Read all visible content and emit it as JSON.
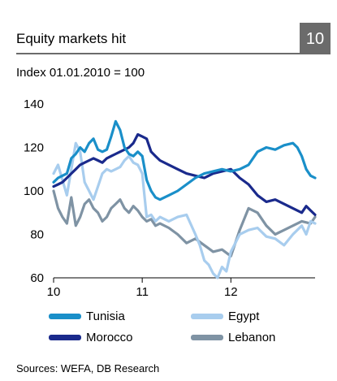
{
  "header": {
    "title": "Equity markets hit",
    "figure_number": "10"
  },
  "subtitle": "Index 01.01.2010 = 100",
  "source": "Sources: WEFA, DB Research",
  "colors": {
    "Tunisia": "#1a8fc9",
    "Egypt": "#a8cdee",
    "Morocco": "#1a2a8c",
    "Lebanon": "#7f93a4",
    "accent_box": "#6b6b6b"
  },
  "chart_data": {
    "type": "line",
    "ylim": [
      60,
      140
    ],
    "yticks": [
      60,
      80,
      100,
      120,
      140
    ],
    "xlim": [
      2010.0,
      2012.95
    ],
    "xticks": [
      {
        "value": 2010,
        "label": "10"
      },
      {
        "value": 2011,
        "label": "11"
      },
      {
        "value": 2012,
        "label": "12"
      }
    ],
    "grid": false,
    "legend_position": "bottom",
    "series": [
      {
        "name": "Tunisia",
        "x": [
          2010.0,
          2010.05,
          2010.1,
          2010.15,
          2010.2,
          2010.25,
          2010.3,
          2010.35,
          2010.4,
          2010.45,
          2010.5,
          2010.55,
          2010.6,
          2010.65,
          2010.7,
          2010.75,
          2010.8,
          2010.85,
          2010.9,
          2010.95,
          2011.0,
          2011.05,
          2011.1,
          2011.15,
          2011.2,
          2011.3,
          2011.4,
          2011.5,
          2011.6,
          2011.7,
          2011.8,
          2011.9,
          2012.0,
          2012.1,
          2012.2,
          2012.3,
          2012.4,
          2012.5,
          2012.6,
          2012.7,
          2012.75,
          2012.8,
          2012.85,
          2012.9,
          2012.95
        ],
        "y": [
          104,
          106,
          107,
          108,
          115,
          117,
          120,
          118,
          122,
          124,
          119,
          118,
          119,
          125,
          132,
          128,
          120,
          117,
          116,
          118,
          116,
          105,
          100,
          97,
          96,
          98,
          100,
          103,
          106,
          108,
          109,
          110,
          109,
          110,
          112,
          118,
          120,
          119,
          121,
          122,
          120,
          116,
          110,
          107,
          106
        ]
      },
      {
        "name": "Egypt",
        "x": [
          2010.0,
          2010.05,
          2010.1,
          2010.15,
          2010.2,
          2010.25,
          2010.3,
          2010.35,
          2010.4,
          2010.45,
          2010.5,
          2010.55,
          2010.6,
          2010.65,
          2010.7,
          2010.75,
          2010.8,
          2010.85,
          2010.9,
          2010.95,
          2011.0,
          2011.02,
          2011.05,
          2011.1,
          2011.15,
          2011.2,
          2011.3,
          2011.4,
          2011.5,
          2011.6,
          2011.65,
          2011.7,
          2011.75,
          2011.8,
          2011.85,
          2011.9,
          2011.95,
          2012.0,
          2012.05,
          2012.1,
          2012.2,
          2012.3,
          2012.4,
          2012.5,
          2012.6,
          2012.7,
          2012.8,
          2012.85,
          2012.9,
          2012.95
        ],
        "y": [
          108,
          112,
          105,
          98,
          110,
          122,
          118,
          104,
          100,
          96,
          102,
          108,
          110,
          109,
          110,
          111,
          114,
          116,
          113,
          112,
          108,
          100,
          88,
          89,
          86,
          88,
          86,
          88,
          89,
          80,
          75,
          68,
          66,
          62,
          60,
          65,
          63,
          72,
          76,
          80,
          82,
          83,
          79,
          78,
          75,
          80,
          84,
          80,
          86,
          85
        ]
      },
      {
        "name": "Morocco",
        "x": [
          2010.0,
          2010.05,
          2010.1,
          2010.15,
          2010.2,
          2010.25,
          2010.3,
          2010.35,
          2010.4,
          2010.45,
          2010.5,
          2010.55,
          2010.6,
          2010.65,
          2010.7,
          2010.75,
          2010.8,
          2010.85,
          2010.9,
          2010.95,
          2011.0,
          2011.05,
          2011.1,
          2011.15,
          2011.2,
          2011.3,
          2011.4,
          2011.5,
          2011.6,
          2011.7,
          2011.8,
          2011.9,
          2012.0,
          2012.1,
          2012.2,
          2012.3,
          2012.4,
          2012.5,
          2012.6,
          2012.7,
          2012.8,
          2012.85,
          2012.9,
          2012.95
        ],
        "y": [
          102,
          103,
          104,
          106,
          108,
          110,
          112,
          113,
          114,
          115,
          114,
          113,
          115,
          116,
          117,
          118,
          119,
          120,
          122,
          126,
          125,
          124,
          118,
          116,
          114,
          112,
          110,
          108,
          107,
          106,
          108,
          109,
          110,
          106,
          103,
          98,
          95,
          96,
          94,
          92,
          90,
          93,
          91,
          89
        ]
      },
      {
        "name": "Lebanon",
        "x": [
          2010.0,
          2010.05,
          2010.1,
          2010.15,
          2010.2,
          2010.25,
          2010.3,
          2010.35,
          2010.4,
          2010.45,
          2010.5,
          2010.55,
          2010.6,
          2010.65,
          2010.7,
          2010.75,
          2010.8,
          2010.85,
          2010.9,
          2010.95,
          2011.0,
          2011.05,
          2011.1,
          2011.15,
          2011.2,
          2011.3,
          2011.4,
          2011.5,
          2011.6,
          2011.7,
          2011.8,
          2011.9,
          2012.0,
          2012.1,
          2012.2,
          2012.3,
          2012.4,
          2012.5,
          2012.6,
          2012.7,
          2012.8,
          2012.9,
          2012.95
        ],
        "y": [
          100,
          92,
          88,
          85,
          97,
          84,
          88,
          94,
          96,
          92,
          90,
          86,
          88,
          92,
          94,
          96,
          92,
          90,
          93,
          91,
          88,
          86,
          87,
          84,
          85,
          83,
          80,
          76,
          78,
          75,
          72,
          73,
          70,
          82,
          92,
          90,
          84,
          80,
          82,
          84,
          86,
          85,
          88
        ]
      }
    ]
  }
}
